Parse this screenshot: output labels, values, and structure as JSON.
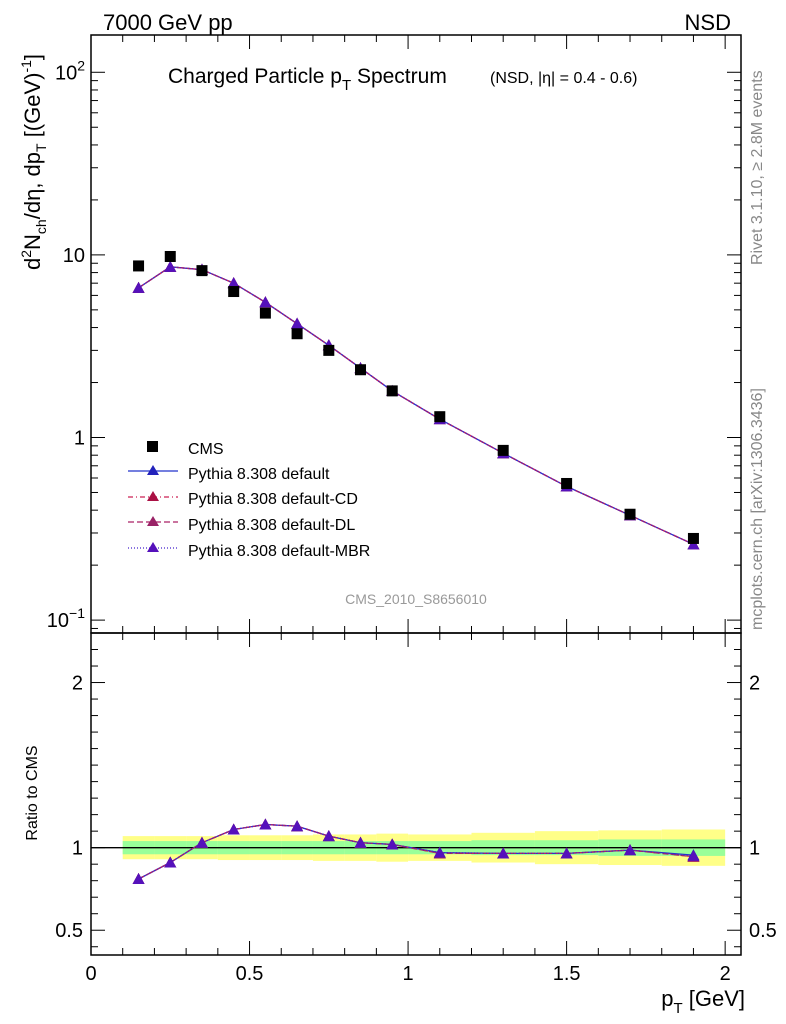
{
  "header": {
    "left_label": "7000 GeV pp",
    "right_label": "NSD"
  },
  "side_text": {
    "rivet": "Rivet 3.1.10, ≥ 2.8M events",
    "mcplots": "mcplots.cern.ch [arXiv:1306.3436]"
  },
  "chart_data": [
    {
      "type": "scatter",
      "title": "Charged Particle p",
      "title_sub": "T",
      "title_tail": " Spectrum",
      "title_extra": "(NSD, |η| = 0.4 - 0.6)",
      "ylabel": "d²N_ch/dη, dp_T [(GeV)⁻¹]",
      "ylabel_parts": {
        "a": "d",
        "b": "2",
        "c": "N",
        "d": "ch",
        "e": "/dη, dp",
        "f": "T",
        "g": " [(GeV)",
        "h": "-1",
        "i": "]"
      },
      "xlim": [
        0,
        2.05
      ],
      "ylim": [
        0.085,
        160
      ],
      "yscale": "log",
      "yticks": [
        {
          "v": 100,
          "base": "10",
          "exp": "2"
        },
        {
          "v": 10,
          "base": "10",
          "exp": ""
        },
        {
          "v": 1,
          "base": "1",
          "exp": ""
        },
        {
          "v": 0.1,
          "base": "10",
          "exp": "−1"
        }
      ],
      "watermark": "CMS_2010_S8656010",
      "legend": {
        "placement": "bottom-left",
        "entries": [
          "CMS",
          "Pythia 8.308 default",
          "Pythia 8.308 default-CD",
          "Pythia 8.308 default-DL",
          "Pythia 8.308 default-MBR"
        ]
      },
      "data": {
        "name": "CMS",
        "color": "#000000",
        "x": [
          0.15,
          0.25,
          0.35,
          0.45,
          0.55,
          0.65,
          0.75,
          0.85,
          0.95,
          1.1,
          1.3,
          1.5,
          1.7,
          1.9
        ],
        "y": [
          8.7,
          9.8,
          8.2,
          6.3,
          4.8,
          3.7,
          3.0,
          2.35,
          1.8,
          1.3,
          0.85,
          0.56,
          0.38,
          0.28
        ]
      },
      "series": [
        {
          "name": "Pythia 8.308 default",
          "color": "#2233cc",
          "dash": "none",
          "marker_color": "#2222bb",
          "x": [
            0.15,
            0.25,
            0.35,
            0.45,
            0.55,
            0.65,
            0.75,
            0.85,
            0.95,
            1.1,
            1.3,
            1.5,
            1.7,
            1.9
          ],
          "y": [
            6.6,
            8.6,
            8.3,
            7.0,
            5.5,
            4.2,
            3.2,
            2.4,
            1.8,
            1.26,
            0.82,
            0.54,
            0.375,
            0.26
          ]
        },
        {
          "name": "Pythia 8.308 default-CD",
          "color": "#cc2255",
          "dash": "5,3,1,3",
          "marker_color": "#aa1144",
          "x": [
            0.15,
            0.25,
            0.35,
            0.45,
            0.55,
            0.65,
            0.75,
            0.85,
            0.95,
            1.1,
            1.3,
            1.5,
            1.7,
            1.9
          ],
          "y": [
            6.6,
            8.6,
            8.3,
            7.0,
            5.5,
            4.2,
            3.2,
            2.4,
            1.8,
            1.26,
            0.82,
            0.54,
            0.375,
            0.26
          ]
        },
        {
          "name": "Pythia 8.308 default-DL",
          "color": "#aa2266",
          "dash": "6,3",
          "marker_color": "#992266",
          "x": [
            0.15,
            0.25,
            0.35,
            0.45,
            0.55,
            0.65,
            0.75,
            0.85,
            0.95,
            1.1,
            1.3,
            1.5,
            1.7,
            1.9
          ],
          "y": [
            6.6,
            8.6,
            8.3,
            7.0,
            5.5,
            4.2,
            3.2,
            2.4,
            1.8,
            1.26,
            0.82,
            0.54,
            0.375,
            0.26
          ]
        },
        {
          "name": "Pythia 8.308 default-MBR",
          "color": "#4422cc",
          "dash": "1,2",
          "marker_color": "#5511bb",
          "x": [
            0.15,
            0.25,
            0.35,
            0.45,
            0.55,
            0.65,
            0.75,
            0.85,
            0.95,
            1.1,
            1.3,
            1.5,
            1.7,
            1.9
          ],
          "y": [
            6.6,
            8.6,
            8.3,
            7.0,
            5.5,
            4.2,
            3.2,
            2.4,
            1.8,
            1.26,
            0.82,
            0.54,
            0.375,
            0.26
          ]
        }
      ]
    },
    {
      "type": "line",
      "ylabel": "Ratio to CMS",
      "xlabel_main": "p",
      "xlabel_sub": "T",
      "xlabel_tail": " [GeV]",
      "xlim": [
        0,
        2.05
      ],
      "ylim": [
        0.35,
        2.3
      ],
      "xticks": [
        {
          "v": 0,
          "label": "0"
        },
        {
          "v": 0.5,
          "label": "0.5"
        },
        {
          "v": 1,
          "label": "1"
        },
        {
          "v": 1.5,
          "label": "1.5"
        },
        {
          "v": 2,
          "label": "2"
        }
      ],
      "yticks": [
        {
          "v": 0.5,
          "label": "0.5"
        },
        {
          "v": 1,
          "label": "1"
        },
        {
          "v": 2,
          "label": "2"
        }
      ],
      "band_colors": {
        "stat": "#99ff99",
        "total": "#ffff88"
      },
      "bins": [
        {
          "lo": 0.1,
          "hi": 0.2,
          "stat": 0.04,
          "total": 0.07
        },
        {
          "lo": 0.2,
          "hi": 0.3,
          "stat": 0.04,
          "total": 0.07
        },
        {
          "lo": 0.3,
          "hi": 0.4,
          "stat": 0.04,
          "total": 0.07
        },
        {
          "lo": 0.4,
          "hi": 0.5,
          "stat": 0.04,
          "total": 0.075
        },
        {
          "lo": 0.5,
          "hi": 0.6,
          "stat": 0.04,
          "total": 0.075
        },
        {
          "lo": 0.6,
          "hi": 0.7,
          "stat": 0.04,
          "total": 0.075
        },
        {
          "lo": 0.7,
          "hi": 0.8,
          "stat": 0.04,
          "total": 0.08
        },
        {
          "lo": 0.8,
          "hi": 0.9,
          "stat": 0.04,
          "total": 0.08
        },
        {
          "lo": 0.9,
          "hi": 1.0,
          "stat": 0.04,
          "total": 0.085
        },
        {
          "lo": 1.0,
          "hi": 1.2,
          "stat": 0.04,
          "total": 0.08
        },
        {
          "lo": 1.2,
          "hi": 1.4,
          "stat": 0.045,
          "total": 0.09
        },
        {
          "lo": 1.4,
          "hi": 1.6,
          "stat": 0.045,
          "total": 0.1
        },
        {
          "lo": 1.6,
          "hi": 1.8,
          "stat": 0.05,
          "total": 0.105
        },
        {
          "lo": 1.8,
          "hi": 2.0,
          "stat": 0.05,
          "total": 0.11
        }
      ],
      "series": [
        {
          "name": "Pythia 8.308 default",
          "color": "#2233cc",
          "dash": "none",
          "marker_color": "#2222bb",
          "x": [
            0.15,
            0.25,
            0.35,
            0.45,
            0.55,
            0.65,
            0.75,
            0.85,
            0.95,
            1.1,
            1.3,
            1.5,
            1.7,
            1.9
          ],
          "y": [
            0.81,
            0.91,
            1.03,
            1.11,
            1.14,
            1.13,
            1.07,
            1.03,
            1.02,
            0.97,
            0.965,
            0.965,
            0.985,
            0.955
          ]
        },
        {
          "name": "Pythia 8.308 default-CD",
          "color": "#cc2255",
          "dash": "5,3,1,3",
          "marker_color": "#aa1144",
          "x": [
            0.15,
            0.25,
            0.35,
            0.45,
            0.55,
            0.65,
            0.75,
            0.85,
            0.95,
            1.1,
            1.3,
            1.5,
            1.7,
            1.9
          ],
          "y": [
            0.81,
            0.91,
            1.03,
            1.11,
            1.14,
            1.13,
            1.07,
            1.03,
            1.02,
            0.965,
            0.965,
            0.965,
            0.985,
            0.945
          ]
        },
        {
          "name": "Pythia 8.308 default-DL",
          "color": "#aa2266",
          "dash": "6,3",
          "marker_color": "#992266",
          "x": [
            0.15,
            0.25,
            0.35,
            0.45,
            0.55,
            0.65,
            0.75,
            0.85,
            0.95,
            1.1,
            1.3,
            1.5,
            1.7,
            1.9
          ],
          "y": [
            0.81,
            0.91,
            1.03,
            1.11,
            1.14,
            1.13,
            1.07,
            1.03,
            1.02,
            0.965,
            0.965,
            0.965,
            0.985,
            0.945
          ]
        },
        {
          "name": "Pythia 8.308 default-MBR",
          "color": "#4422cc",
          "dash": "1,2",
          "marker_color": "#5511bb",
          "x": [
            0.15,
            0.25,
            0.35,
            0.45,
            0.55,
            0.65,
            0.75,
            0.85,
            0.95,
            1.1,
            1.3,
            1.5,
            1.7,
            1.9
          ],
          "y": [
            0.81,
            0.91,
            1.03,
            1.11,
            1.14,
            1.13,
            1.07,
            1.03,
            1.02,
            0.97,
            0.965,
            0.965,
            0.985,
            0.95
          ]
        }
      ]
    }
  ]
}
